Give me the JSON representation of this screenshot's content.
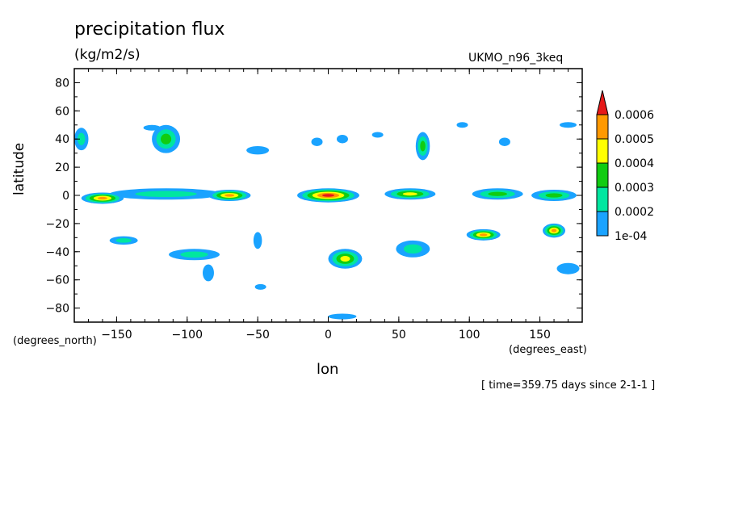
{
  "chart_data": {
    "type": "heatmap",
    "title": "precipitation flux",
    "units": "(kg/m2/s)",
    "model": "UKMO_n96_3keq",
    "xlabel": "lon",
    "ylabel": "latitude",
    "xunits": "(degrees_east)",
    "yunits": "(degrees_north)",
    "timestamp": "[ time=359.75 days since 2-1-1 ]",
    "xlim": [
      -180,
      180
    ],
    "ylim": [
      -90,
      90
    ],
    "xticks": [
      -150,
      -100,
      -50,
      0,
      50,
      100,
      150
    ],
    "yticks": [
      80,
      60,
      40,
      20,
      0,
      -20,
      -40,
      -60,
      -80
    ],
    "colorbar": {
      "levels": [
        "1e-04",
        "0.0002",
        "0.0003",
        "0.0004",
        "0.0005",
        "0.0006"
      ],
      "colors": [
        "#1aa3ff",
        "#00e6a0",
        "#11cc11",
        "#ffff00",
        "#ff9900",
        "#e61919"
      ]
    },
    "regions": [
      {
        "lon": 0,
        "lat": 0,
        "rx": 22,
        "ry": 5,
        "level": 5
      },
      {
        "lon": 58,
        "lat": 1,
        "rx": 18,
        "ry": 4,
        "level": 3
      },
      {
        "lon": -115,
        "lat": 1,
        "rx": 40,
        "ry": 4,
        "level": 1
      },
      {
        "lon": -160,
        "lat": -2,
        "rx": 15,
        "ry": 4,
        "level": 4
      },
      {
        "lon": -70,
        "lat": 0,
        "rx": 15,
        "ry": 4,
        "level": 4
      },
      {
        "lon": 120,
        "lat": 1,
        "rx": 18,
        "ry": 4,
        "level": 2
      },
      {
        "lon": 160,
        "lat": 0,
        "rx": 16,
        "ry": 4,
        "level": 2
      },
      {
        "lon": 12,
        "lat": -45,
        "rx": 12,
        "ry": 7,
        "level": 3
      },
      {
        "lon": 110,
        "lat": -28,
        "rx": 12,
        "ry": 4,
        "level": 4
      },
      {
        "lon": 160,
        "lat": -25,
        "rx": 8,
        "ry": 5,
        "level": 4
      },
      {
        "lon": -145,
        "lat": -32,
        "rx": 10,
        "ry": 3,
        "level": 1
      },
      {
        "lon": -95,
        "lat": -42,
        "rx": 18,
        "ry": 4,
        "level": 1
      },
      {
        "lon": 60,
        "lat": -38,
        "rx": 12,
        "ry": 6,
        "level": 1
      },
      {
        "lon": 170,
        "lat": -52,
        "rx": 8,
        "ry": 4,
        "level": 0
      },
      {
        "lon": -175,
        "lat": 40,
        "rx": 5,
        "ry": 8,
        "level": 1
      },
      {
        "lon": -115,
        "lat": 40,
        "rx": 10,
        "ry": 10,
        "level": 2
      },
      {
        "lon": 67,
        "lat": 35,
        "rx": 5,
        "ry": 10,
        "level": 2
      },
      {
        "lon": -50,
        "lat": 32,
        "rx": 8,
        "ry": 3,
        "level": 0
      },
      {
        "lon": -8,
        "lat": 38,
        "rx": 4,
        "ry": 3,
        "level": 0
      },
      {
        "lon": 10,
        "lat": 40,
        "rx": 4,
        "ry": 3,
        "level": 0
      },
      {
        "lon": 125,
        "lat": 38,
        "rx": 4,
        "ry": 3,
        "level": 0
      },
      {
        "lon": 170,
        "lat": 50,
        "rx": 6,
        "ry": 2,
        "level": 0
      },
      {
        "lon": -85,
        "lat": -55,
        "rx": 4,
        "ry": 6,
        "level": 0
      },
      {
        "lon": -50,
        "lat": -32,
        "rx": 3,
        "ry": 6,
        "level": 0
      },
      {
        "lon": -48,
        "lat": -65,
        "rx": 4,
        "ry": 2,
        "level": 0
      },
      {
        "lon": 10,
        "lat": -86,
        "rx": 10,
        "ry": 2,
        "level": 0
      },
      {
        "lon": -125,
        "lat": 48,
        "rx": 6,
        "ry": 2,
        "level": 0
      },
      {
        "lon": 95,
        "lat": 50,
        "rx": 4,
        "ry": 2,
        "level": 0
      },
      {
        "lon": 35,
        "lat": 43,
        "rx": 4,
        "ry": 2,
        "level": 0
      }
    ]
  }
}
